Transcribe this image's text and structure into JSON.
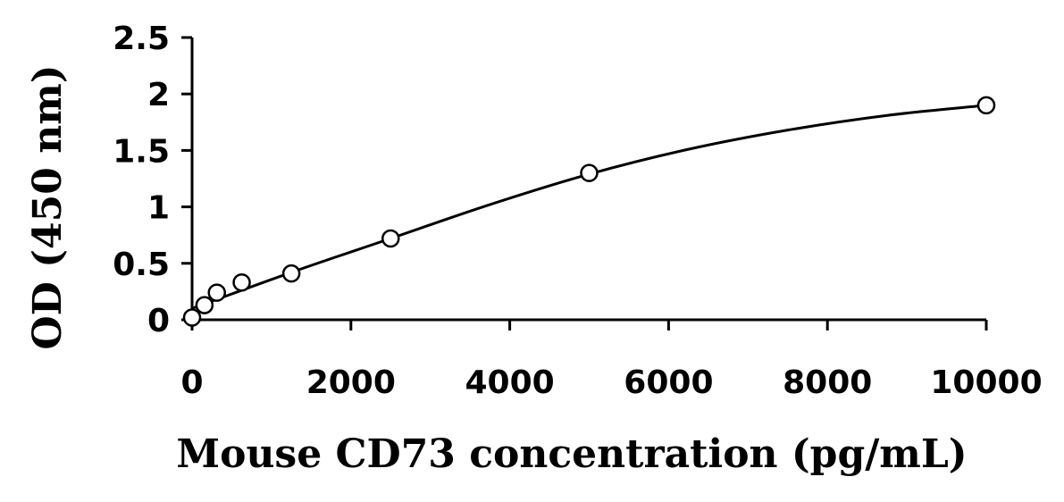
{
  "chart_data": {
    "type": "scatter",
    "xlabel": "Mouse CD73 concentration (pg/mL)",
    "ylabel": "OD (450 nm)",
    "xlim": [
      0,
      10000
    ],
    "ylim": [
      0,
      2.5
    ],
    "x_ticks": [
      0,
      2000,
      4000,
      6000,
      8000,
      10000
    ],
    "y_ticks": [
      0,
      0.5,
      1,
      1.5,
      2,
      2.5
    ],
    "x_tick_labels": [
      "0",
      "2000",
      "4000",
      "6000",
      "8000",
      "10000"
    ],
    "y_tick_labels": [
      "0",
      "0.5",
      "1",
      "1.5",
      "2",
      "2.5"
    ],
    "grid": false,
    "legend": "none",
    "series": [
      {
        "x": [
          0,
          156,
          312,
          625,
          1250,
          2500,
          5000,
          10000
        ],
        "y": [
          0.02,
          0.13,
          0.24,
          0.33,
          0.41,
          0.72,
          1.3,
          1.9
        ],
        "marker": "open-circle"
      }
    ],
    "fit_line": {
      "type": "smooth-curve",
      "x": [
        0,
        1250,
        2500,
        3750,
        5000,
        6250,
        7500,
        8750,
        10000
      ],
      "y": [
        0.1,
        0.42,
        0.72,
        1.02,
        1.29,
        1.51,
        1.68,
        1.81,
        1.9
      ]
    }
  }
}
